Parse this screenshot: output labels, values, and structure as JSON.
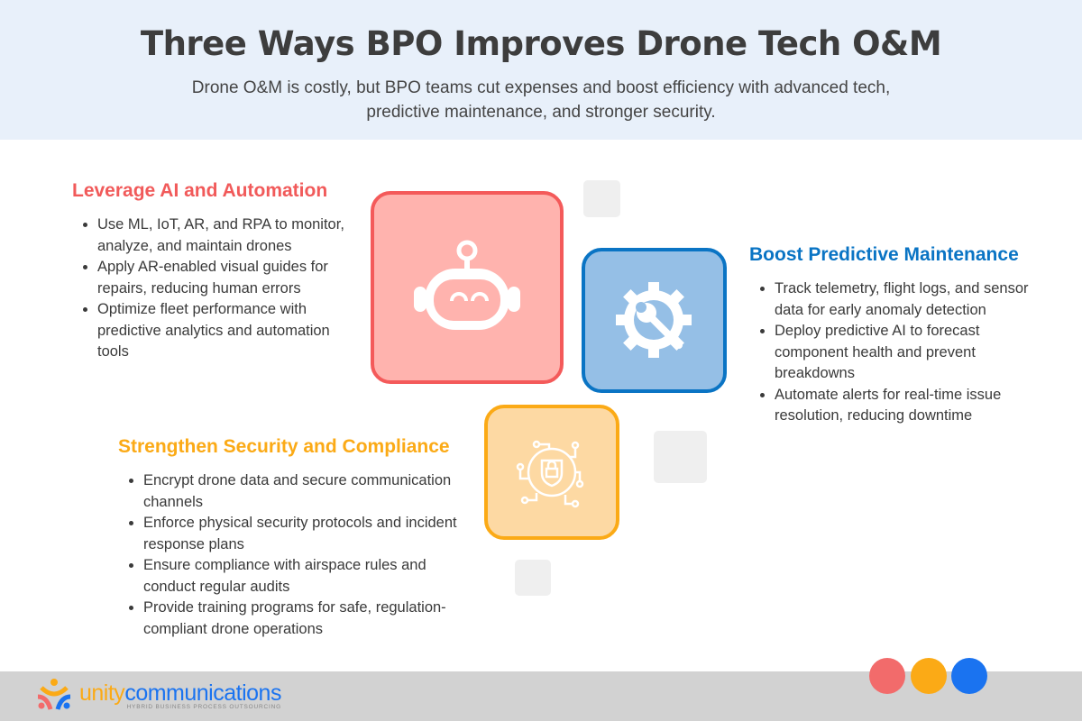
{
  "header": {
    "title": "Three Ways BPO Improves Drone Tech O&M",
    "subtitle_line1": "Drone O&M is costly, but BPO teams cut expenses and boost efficiency with advanced tech,",
    "subtitle_line2": "predictive maintenance, and stronger security."
  },
  "sections": [
    {
      "title": "Leverage AI and Automation",
      "color": "#f15a5a",
      "icon": "robot-icon",
      "items": [
        "Use ML, IoT, AR, and RPA to monitor, analyze, and maintain drones",
        "Apply AR-enabled visual guides for repairs, reducing human errors",
        "Optimize fleet performance with predictive analytics and automation tools"
      ]
    },
    {
      "title": "Boost Predictive Maintenance",
      "color": "#0a74c4",
      "icon": "gear-wrench-icon",
      "items": [
        "Track telemetry, flight logs, and sensor data for early anomaly detection",
        "Deploy predictive AI to forecast component health and prevent breakdowns",
        "Automate alerts for real-time issue resolution, reducing downtime"
      ]
    },
    {
      "title": "Strengthen Security and Compliance",
      "color": "#fbaa16",
      "icon": "security-lock-circuit-icon",
      "items": [
        "Encrypt drone data and secure communication channels",
        "Enforce physical security protocols and incident response plans",
        "Ensure compliance with airspace rules and conduct regular audits",
        "Provide training programs for safe, regulation-compliant drone operations"
      ]
    }
  ],
  "footer": {
    "logo_word1": "unity",
    "logo_word2": "communications",
    "logo_tagline": "HYBRID BUSINESS PROCESS OUTSOURCING",
    "dot_colors": [
      "#f26b6b",
      "#fbaa16",
      "#1a73f0"
    ]
  }
}
